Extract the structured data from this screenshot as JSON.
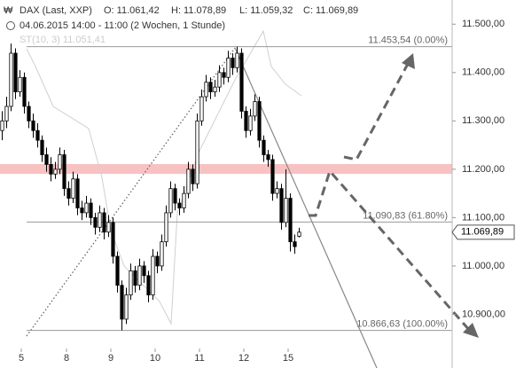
{
  "chart_data": {
    "type": "candlestick",
    "title": "DAX (Last, XXP)",
    "header": {
      "open": "O: 11.061,42",
      "high": "H: 11.078,89",
      "low": "L: 11.059,32",
      "close": "C: 11.069,89"
    },
    "subtitle": "04.06.2015 14:00 - 11:00 (2 Wochen, 1 Stunde)",
    "indicator": "ST(10, 3) 11.051,41",
    "up_color": "#ffffff",
    "down_color": "#000000",
    "x": [
      0.5,
      1.5,
      2.5,
      3.5,
      4.5,
      5.5,
      6.5,
      7.5,
      8.5,
      9.5,
      10.5,
      11.5,
      12.5,
      13.5,
      14.5,
      15.5,
      16.5,
      17.5,
      18.5,
      19.5,
      20.5,
      21.5,
      22.5,
      23.5,
      24.5,
      25.5,
      26.5,
      27.5,
      28.5,
      29.5,
      30.5,
      31.5,
      32.5,
      33.5,
      34.5,
      35.5,
      36.5,
      37.5,
      38.5,
      39.5,
      40.5,
      41.5,
      42.5,
      43.5,
      44.5,
      45.5,
      46.5,
      47.5,
      48.5,
      49.5,
      50.5,
      51.5,
      52.5,
      53.5,
      54.5,
      55.5,
      56.5,
      57.5,
      58.5,
      59.5,
      60.5,
      61.5,
      62.5,
      63.5,
      64.5,
      65.5,
      66.5,
      67.5
    ],
    "open": [
      11280,
      11300,
      11330,
      11440,
      11360,
      11390,
      11330,
      11300,
      11280,
      11260,
      11230,
      11210,
      11190,
      11200,
      11230,
      11160,
      11140,
      11180,
      11120,
      11110,
      11130,
      11100,
      11080,
      11110,
      11070,
      11090,
      11020,
      10960,
      10890,
      10940,
      10990,
      10960,
      11000,
      10980,
      10940,
      11020,
      11000,
      11050,
      11110,
      11160,
      11130,
      11120,
      11150,
      11200,
      11170,
      11300,
      11350,
      11380,
      11360,
      11370,
      11400,
      11390,
      11430,
      11410,
      11440,
      11320,
      11280,
      11310,
      11340,
      11260,
      11230,
      11220,
      11150,
      11160,
      11090,
      11140,
      11050,
      11061.42
    ],
    "high": [
      11320,
      11350,
      11460,
      11450,
      11405,
      11400,
      11340,
      11315,
      11295,
      11270,
      11245,
      11225,
      11215,
      11245,
      11240,
      11175,
      11195,
      11190,
      11135,
      11145,
      11140,
      11110,
      11125,
      11120,
      11105,
      11100,
      11030,
      10970,
      10955,
      11005,
      11000,
      11015,
      11010,
      10990,
      11035,
      11030,
      11065,
      11125,
      11175,
      11170,
      11140,
      11165,
      11215,
      11210,
      11315,
      11365,
      11395,
      11390,
      11385,
      11415,
      11410,
      11445,
      11440,
      11453.54,
      11450,
      11330,
      11325,
      11355,
      11350,
      11270,
      11240,
      11230,
      11175,
      11170,
      11200,
      11150,
      11065,
      11078.89
    ],
    "low": [
      11260,
      11285,
      11320,
      11345,
      11350,
      11315,
      11285,
      11265,
      11245,
      11215,
      11195,
      11175,
      11180,
      11190,
      11145,
      11125,
      11130,
      11105,
      11095,
      11100,
      11085,
      11065,
      11070,
      11055,
      11060,
      11005,
      10945,
      10866.63,
      10880,
      10930,
      10945,
      10950,
      10965,
      10925,
      10930,
      10985,
      10990,
      11040,
      11100,
      11115,
      11105,
      11110,
      11140,
      11155,
      11160,
      11290,
      11340,
      11345,
      11350,
      11360,
      11375,
      11380,
      11395,
      11400,
      11305,
      11265,
      11270,
      11300,
      11245,
      11215,
      11205,
      11135,
      11140,
      11075,
      11080,
      11030,
      11025,
      11059.32
    ],
    "close": [
      11300,
      11330,
      11440,
      11360,
      11390,
      11330,
      11300,
      11280,
      11260,
      11230,
      11210,
      11190,
      11200,
      11230,
      11160,
      11140,
      11180,
      11120,
      11110,
      11130,
      11100,
      11080,
      11110,
      11070,
      11090,
      11020,
      10960,
      10890,
      10940,
      10990,
      10960,
      11000,
      10980,
      10940,
      11020,
      11000,
      11050,
      11110,
      11160,
      11130,
      11120,
      11150,
      11200,
      11170,
      11300,
      11350,
      11380,
      11360,
      11370,
      11400,
      11390,
      11430,
      11410,
      11440,
      11320,
      11280,
      11310,
      11340,
      11260,
      11230,
      11220,
      11150,
      11160,
      11090,
      11140,
      11050,
      11040,
      11069.89
    ],
    "last_price": {
      "value": 11069.89,
      "label": "11.069,89"
    },
    "levels": [
      {
        "value": 11453.54,
        "label": "11.453,54 (0.00%)"
      },
      {
        "value": 11090.83,
        "label": "11.090,83 (61.80%)"
      },
      {
        "value": 10866.63,
        "label": "10.866,63 (100.00%)"
      }
    ],
    "xlim": [
      0,
      102
    ],
    "xticks": [
      {
        "value": 4.8,
        "label": "5"
      },
      {
        "value": 15,
        "label": "8"
      },
      {
        "value": 25,
        "label": "9"
      },
      {
        "value": 35,
        "label": "10"
      },
      {
        "value": 45,
        "label": "11"
      },
      {
        "value": 55,
        "label": "12"
      },
      {
        "value": 65,
        "label": "15"
      }
    ],
    "ylim": [
      10800,
      11550
    ],
    "yticks": [
      {
        "value": 10900,
        "label": "10.900,00"
      },
      {
        "value": 11000,
        "label": "11.000,00"
      },
      {
        "value": 11100,
        "label": "11.100,00"
      },
      {
        "value": 11200,
        "label": "11.200,00"
      },
      {
        "value": 11300,
        "label": "11.300,00"
      },
      {
        "value": 11400,
        "label": "11.400,00"
      },
      {
        "value": 11500,
        "label": "11.500,00"
      }
    ]
  }
}
